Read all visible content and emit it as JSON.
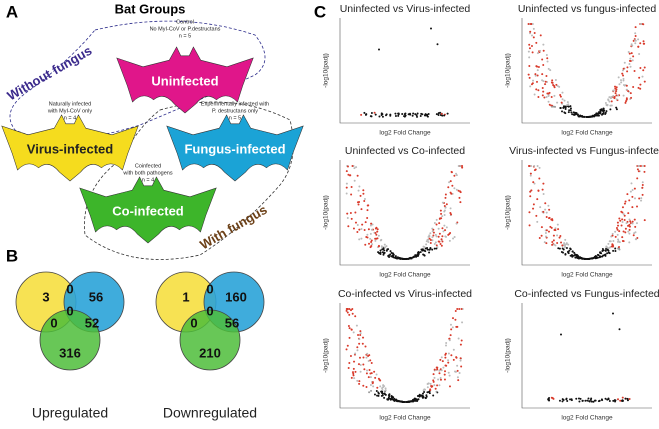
{
  "panels": {
    "A": {
      "label": "A",
      "title": "Bat Groups",
      "without_fungus": "Without fungus",
      "with_fungus": "With fungus",
      "groups": [
        {
          "name": "Uninfected",
          "caption": [
            "Control",
            "No MyI-CoV or P.destructans",
            "n = 5"
          ]
        },
        {
          "name": "Virus-infected",
          "caption": [
            "Naturally infected",
            "with MyI-CoV only",
            "n = 4"
          ]
        },
        {
          "name": "Fungus-infected",
          "caption": [
            "Experimentally infected with",
            "P. destructans only",
            "n = 5"
          ]
        },
        {
          "name": "Co-infected",
          "caption": [
            "Coinfected",
            "with both pathogens",
            "n = 4"
          ]
        }
      ]
    },
    "B": {
      "label": "B",
      "venns": [
        {
          "label": "Upregulated",
          "numbers": [
            3,
            0,
            56,
            0,
            0,
            52,
            316
          ]
        },
        {
          "label": "Downregulated",
          "numbers": [
            1,
            0,
            160,
            0,
            0,
            56,
            210
          ]
        }
      ]
    },
    "C": {
      "label": "C",
      "x_label": "log2 Fold Change",
      "y_label": "-log10(padj)",
      "plots": [
        {
          "title": "Uninfected vs Virus-infected"
        },
        {
          "title": "Uninfected vs fungus-infected"
        },
        {
          "title": "Uninfected vs Co-infected"
        },
        {
          "title": "Virus-infected vs Fungus-infected"
        },
        {
          "title": "Co-infected vs Virus-infected"
        },
        {
          "title": "Co-infected vs Fungus-infected"
        }
      ]
    }
  }
}
